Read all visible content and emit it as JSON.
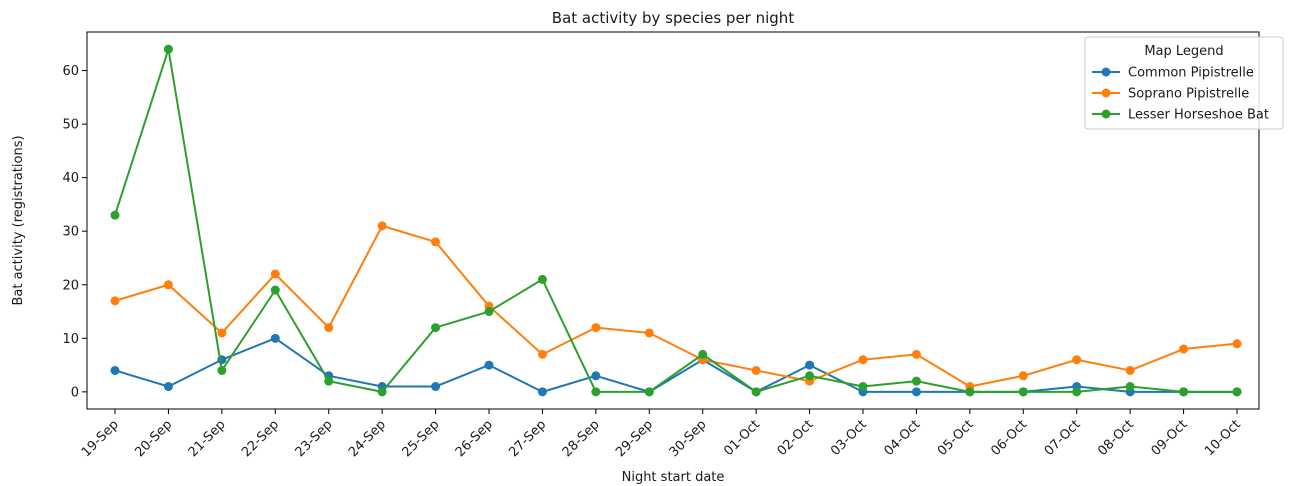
{
  "chart_data": {
    "type": "line",
    "title": "Bat activity by species per night",
    "xlabel": "Night start date",
    "ylabel": "Bat activity (registrations)",
    "categories": [
      "19-Sep",
      "20-Sep",
      "21-Sep",
      "22-Sep",
      "23-Sep",
      "24-Sep",
      "25-Sep",
      "26-Sep",
      "27-Sep",
      "28-Sep",
      "29-Sep",
      "30-Sep",
      "01-Oct",
      "02-Oct",
      "03-Oct",
      "04-Oct",
      "05-Oct",
      "06-Oct",
      "07-Oct",
      "08-Oct",
      "09-Oct",
      "10-Oct"
    ],
    "ylim": [
      -3.2,
      67.2
    ],
    "yticks": [
      0,
      10,
      20,
      30,
      40,
      50,
      60
    ],
    "grid": false,
    "legend": {
      "title": "Map Legend",
      "placement": "top-right"
    },
    "series": [
      {
        "name": "Common Pipistrelle",
        "color": "#1f77b4",
        "values": [
          4,
          1,
          6,
          10,
          3,
          1,
          1,
          5,
          0,
          3,
          0,
          6,
          0,
          5,
          0,
          0,
          0,
          0,
          1,
          0,
          0,
          0
        ]
      },
      {
        "name": "Soprano Pipistrelle",
        "color": "#ff7f0e",
        "values": [
          17,
          20,
          11,
          22,
          12,
          31,
          28,
          16,
          7,
          12,
          11,
          6,
          4,
          2,
          6,
          7,
          1,
          3,
          6,
          4,
          8,
          9
        ]
      },
      {
        "name": "Lesser Horseshoe Bat",
        "color": "#2ca02c",
        "values": [
          33,
          64,
          4,
          19,
          2,
          0,
          12,
          15,
          21,
          0,
          0,
          7,
          0,
          3,
          1,
          2,
          0,
          0,
          0,
          1,
          0,
          0
        ]
      }
    ]
  }
}
